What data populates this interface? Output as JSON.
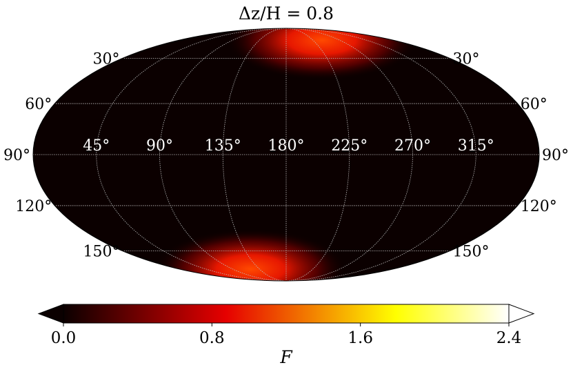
{
  "chart_data": {
    "type": "heatmap",
    "projection": "mollweide",
    "title": "Δz/H = 0.8",
    "colormap": "hot",
    "colorbar": {
      "label": "F",
      "ticks": [
        0.0,
        0.8,
        1.6,
        2.4
      ],
      "tick_labels": [
        "0.0",
        "0.8",
        "1.6",
        "2.4"
      ],
      "range": [
        0.0,
        2.4
      ],
      "extend": "both",
      "placement": "bottom"
    },
    "grid": true,
    "lon_tick_labels": [
      "45°",
      "90°",
      "135°",
      "180°",
      "225°",
      "270°",
      "315°"
    ],
    "lat_tick_labels_left": [
      "30°",
      "60°",
      "90°",
      "120°",
      "150°"
    ],
    "lat_tick_labels_right": [
      "30°",
      "60°",
      "90°",
      "120°",
      "150°"
    ],
    "hotspots": [
      {
        "lon_deg": 240,
        "colat_deg": 15,
        "peak_F": 1.2
      },
      {
        "lon_deg": 120,
        "colat_deg": 165,
        "peak_F": 1.2
      }
    ]
  }
}
